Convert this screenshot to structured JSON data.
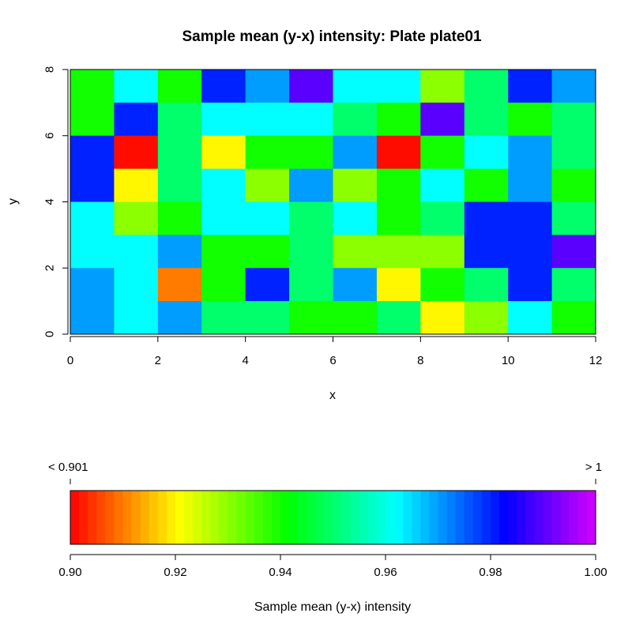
{
  "chart_data": [
    {
      "type": "heatmap",
      "title": "Sample mean (y-x) intensity:  Plate plate01",
      "xlabel": "x",
      "ylabel": "y",
      "xlim": [
        0,
        12
      ],
      "ylim": [
        0,
        8
      ],
      "x_ticks": [
        "0",
        "2",
        "4",
        "6",
        "8",
        "10",
        "12"
      ],
      "y_ticks": [
        "0",
        "2",
        "4",
        "6",
        "8"
      ],
      "grid": false,
      "cell_size": [
        1,
        1
      ],
      "rows_y_descending": [
        [
          0.94,
          0.962,
          0.94,
          0.98,
          0.97,
          0.99,
          0.962,
          0.962,
          0.93,
          0.95,
          0.98,
          0.97
        ],
        [
          0.94,
          0.98,
          0.95,
          0.962,
          0.962,
          0.962,
          0.95,
          0.94,
          0.99,
          0.95,
          0.94,
          0.95
        ],
        [
          0.98,
          0.901,
          0.95,
          0.92,
          0.94,
          0.94,
          0.97,
          0.901,
          0.94,
          0.962,
          0.97,
          0.95
        ],
        [
          0.98,
          0.92,
          0.95,
          0.962,
          0.93,
          0.97,
          0.93,
          0.94,
          0.962,
          0.94,
          0.97,
          0.94
        ],
        [
          0.962,
          0.93,
          0.94,
          0.962,
          0.962,
          0.95,
          0.962,
          0.94,
          0.95,
          0.98,
          0.98,
          0.95
        ],
        [
          0.962,
          0.962,
          0.97,
          0.94,
          0.94,
          0.95,
          0.93,
          0.93,
          0.93,
          0.98,
          0.98,
          0.99
        ],
        [
          0.97,
          0.962,
          0.91,
          0.94,
          0.98,
          0.95,
          0.97,
          0.92,
          0.94,
          0.95,
          0.98,
          0.95
        ],
        [
          0.97,
          0.962,
          0.97,
          0.95,
          0.95,
          0.94,
          0.94,
          0.95,
          0.92,
          0.93,
          0.962,
          0.94
        ]
      ]
    },
    {
      "type": "colorbar",
      "xlabel": "Sample mean (y-x) intensity",
      "xlim": [
        0.9,
        1.0
      ],
      "x_ticks": [
        "0.90",
        "0.92",
        "0.94",
        "0.96",
        "0.98",
        "1.00"
      ],
      "low_label": "<  0.901",
      "high_label": ">  1",
      "n_steps": 60,
      "palette": "rainbow red→yellow→green→cyan→blue→magenta"
    }
  ]
}
